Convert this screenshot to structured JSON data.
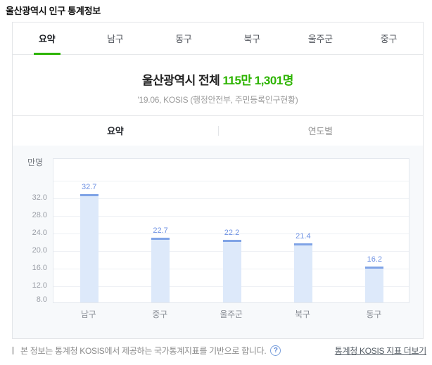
{
  "page_title": "울산광역시 인구 통계정보",
  "tabs": [
    {
      "label": "요약",
      "active": true
    },
    {
      "label": "남구",
      "active": false
    },
    {
      "label": "동구",
      "active": false
    },
    {
      "label": "북구",
      "active": false
    },
    {
      "label": "울주군",
      "active": false
    },
    {
      "label": "중구",
      "active": false
    }
  ],
  "summary": {
    "headline_prefix": "울산광역시 전체 ",
    "headline_value": "115만 1,301명",
    "source": "'19.06, KOSIS (행정안전부, 주민등록인구현황)"
  },
  "subtabs": [
    {
      "label": "요약",
      "active": true
    },
    {
      "label": "연도별",
      "active": false
    }
  ],
  "chart_data": {
    "type": "bar",
    "ylabel": "만명",
    "categories": [
      "남구",
      "중구",
      "울주군",
      "북구",
      "동구"
    ],
    "values": [
      32.7,
      22.7,
      22.2,
      21.4,
      16.2
    ],
    "value_labels": [
      "32.7",
      "22.7",
      "22.2",
      "21.4",
      "16.2"
    ],
    "ytick_values": [
      32,
      28,
      24,
      20,
      16,
      12,
      8
    ],
    "ytick_labels": [
      "32.0",
      "28.0",
      "24.0",
      "20.0",
      "16.0",
      "12.0",
      "8.0"
    ],
    "ylim": [
      8,
      41
    ],
    "grid": true,
    "bar_color": "#dde9fa",
    "bar_cap_color": "#7fa3e6",
    "value_label_color": "#6f92e3"
  },
  "footer": {
    "notice": "본 정보는 통계청 KOSIS에서 제공하는 국가통계지표를 기반으로 합니다.",
    "help_icon": "?",
    "link_label": "통계청 KOSIS 지표 더보기"
  },
  "colors": {
    "accent_green": "#2db400",
    "panel_bg": "#f7f9fb",
    "box_border": "#e3e5e8"
  }
}
